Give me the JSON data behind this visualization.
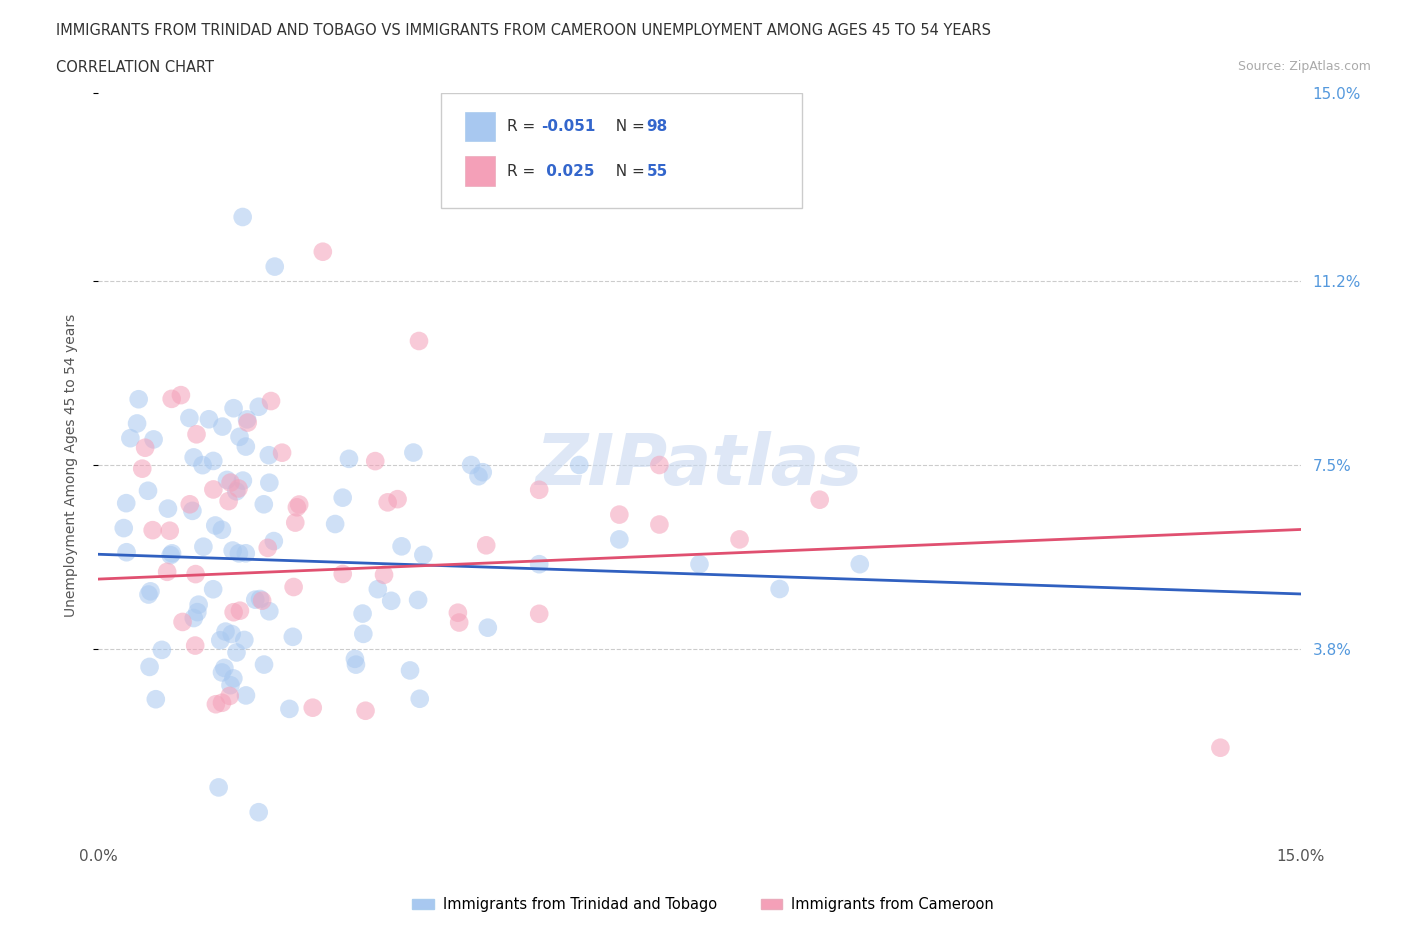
{
  "title_line1": "IMMIGRANTS FROM TRINIDAD AND TOBAGO VS IMMIGRANTS FROM CAMEROON UNEMPLOYMENT AMONG AGES 45 TO 54 YEARS",
  "title_line2": "CORRELATION CHART",
  "source_text": "Source: ZipAtlas.com",
  "ylabel": "Unemployment Among Ages 45 to 54 years",
  "xlim": [
    0.0,
    0.15
  ],
  "ylim": [
    0.0,
    0.15
  ],
  "xtick_vals": [
    0.0,
    0.15
  ],
  "xtick_labels": [
    "0.0%",
    "15.0%"
  ],
  "ytick_vals": [
    0.038,
    0.075,
    0.112,
    0.15
  ],
  "ytick_labels": [
    "3.8%",
    "7.5%",
    "11.2%",
    "15.0%"
  ],
  "hgrid_vals": [
    0.038,
    0.075,
    0.112
  ],
  "R_blue": -0.051,
  "N_blue": 98,
  "R_pink": 0.025,
  "N_pink": 55,
  "color_blue": "#a8c8f0",
  "color_pink": "#f4a0b8",
  "trendline_blue_color": "#3060c0",
  "trendline_pink_color": "#e05070",
  "legend_label_blue": "Immigrants from Trinidad and Tobago",
  "legend_label_pink": "Immigrants from Cameroon",
  "watermark": "ZIPatlas",
  "watermark_color": "#c8d8f0",
  "background_color": "#ffffff",
  "title_color": "#333333",
  "axis_label_color": "#555555",
  "tick_color_right": "#5599dd",
  "blue_trend_start_y": 0.057,
  "blue_trend_end_y": 0.049,
  "pink_trend_start_y": 0.052,
  "pink_trend_end_y": 0.062
}
